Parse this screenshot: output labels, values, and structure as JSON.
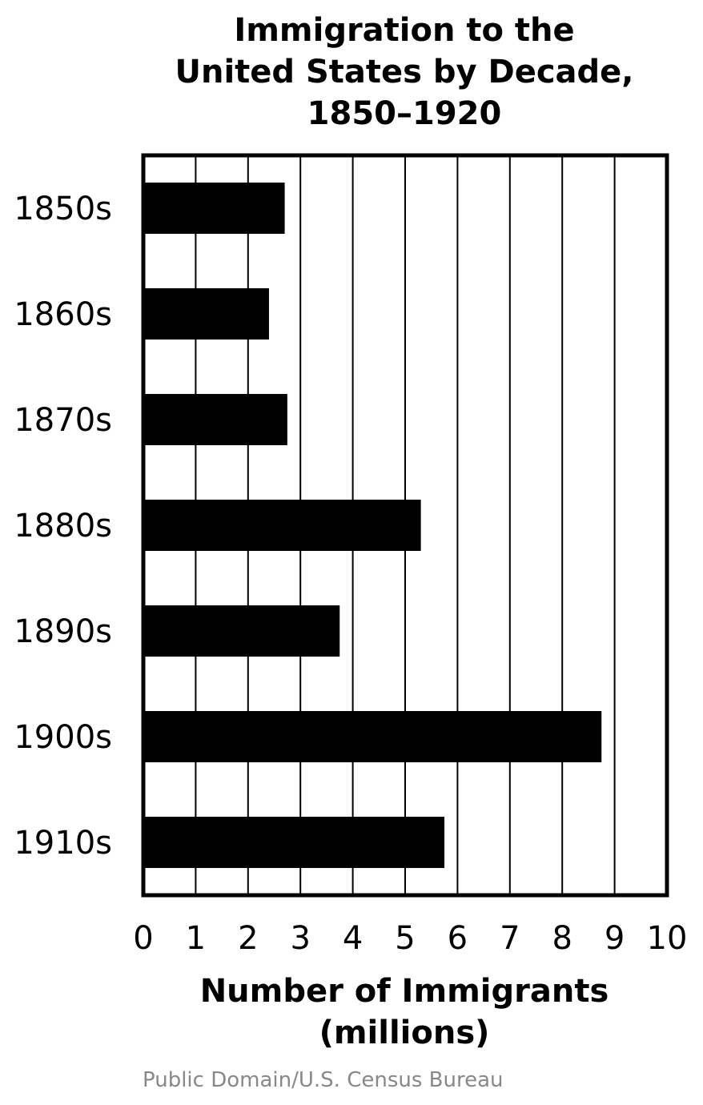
{
  "chart_data": {
    "type": "bar",
    "orientation": "horizontal",
    "title_lines": [
      "Immigration to the",
      "United States by Decade,",
      "1850–1920"
    ],
    "categories": [
      "1850s",
      "1860s",
      "1870s",
      "1880s",
      "1890s",
      "1900s",
      "1910s"
    ],
    "values": [
      2.7,
      2.4,
      2.75,
      5.3,
      3.75,
      8.75,
      5.75
    ],
    "xlabel_lines": [
      "Number of Immigrants",
      "(millions)"
    ],
    "xlim": [
      0,
      10
    ],
    "xticks": [
      "0",
      "1",
      "2",
      "3",
      "4",
      "5",
      "6",
      "7",
      "8",
      "9",
      "10"
    ],
    "grid": "vertical",
    "bar_color": "#000000"
  },
  "source": "Public Domain/U.S. Census Bureau"
}
